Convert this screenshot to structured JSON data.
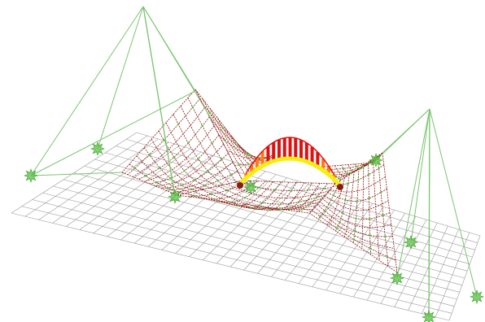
{
  "scene": {
    "background_color": "#ffffff",
    "grid_color": "#9a9a9a",
    "cable_color": "#7cc470",
    "net_color": "#8a1a10",
    "node_color": "#58c040",
    "arch_colors": [
      "#f5ef10",
      "#ff7a10",
      "#e01010"
    ],
    "support_icon": "support-star-icon",
    "labels": []
  }
}
